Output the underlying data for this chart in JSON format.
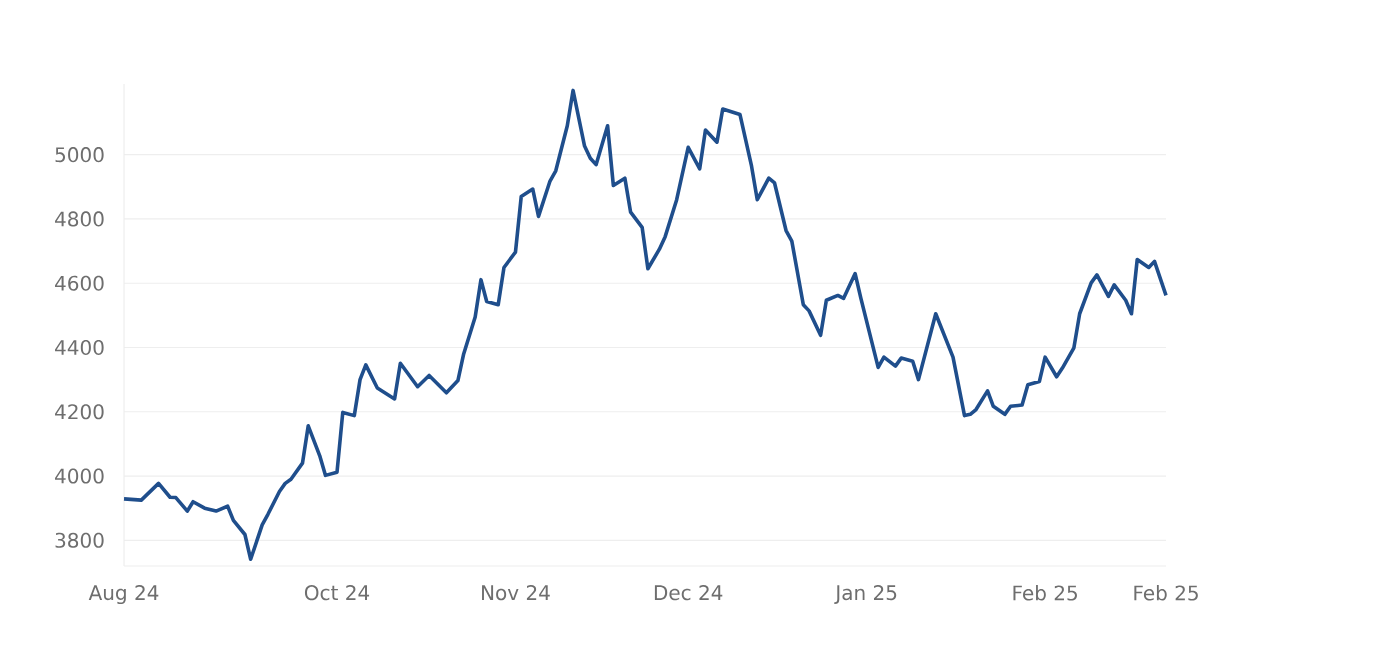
{
  "chart_data": {
    "type": "line",
    "grid": "y",
    "line_style": "solid",
    "xlim": [
      "2024-08-25",
      "2025-02-22"
    ],
    "ylim": [
      3720,
      5220
    ],
    "yticks": [
      3800,
      4000,
      4200,
      4400,
      4600,
      4800,
      5000
    ],
    "xticks": [
      {
        "value": "2024-08-25",
        "label": "Aug 24"
      },
      {
        "value": "2024-10-01",
        "label": "Oct 24"
      },
      {
        "value": "2024-11-01",
        "label": "Nov 24"
      },
      {
        "value": "2024-12-01",
        "label": "Dec 24"
      },
      {
        "value": "2025-01-01",
        "label": "Jan 25"
      },
      {
        "value": "2025-02-01",
        "label": "Feb 25"
      },
      {
        "value": "2025-02-22",
        "label": "Feb 25"
      }
    ],
    "x": [
      "2024-08-25",
      "2024-08-28",
      "2024-08-31",
      "2024-09-02",
      "2024-09-03",
      "2024-09-05",
      "2024-09-06",
      "2024-09-08",
      "2024-09-10",
      "2024-09-12",
      "2024-09-13",
      "2024-09-15",
      "2024-09-16",
      "2024-09-18",
      "2024-09-19",
      "2024-09-21",
      "2024-09-22",
      "2024-09-23",
      "2024-09-25",
      "2024-09-26",
      "2024-09-28",
      "2024-09-29",
      "2024-10-01",
      "2024-10-02",
      "2024-10-04",
      "2024-10-05",
      "2024-10-06",
      "2024-10-08",
      "2024-10-11",
      "2024-10-12",
      "2024-10-15",
      "2024-10-17",
      "2024-10-20",
      "2024-10-22",
      "2024-10-23",
      "2024-10-25",
      "2024-10-26",
      "2024-10-27",
      "2024-10-29",
      "2024-10-30",
      "2024-11-01",
      "2024-11-02",
      "2024-11-04",
      "2024-11-05",
      "2024-11-07",
      "2024-11-08",
      "2024-11-10",
      "2024-11-11",
      "2024-11-13",
      "2024-11-14",
      "2024-11-15",
      "2024-11-17",
      "2024-11-18",
      "2024-11-20",
      "2024-11-21",
      "2024-11-23",
      "2024-11-24",
      "2024-11-26",
      "2024-11-27",
      "2024-11-29",
      "2024-12-01",
      "2024-12-03",
      "2024-12-04",
      "2024-12-06",
      "2024-12-07",
      "2024-12-10",
      "2024-12-12",
      "2024-12-13",
      "2024-12-15",
      "2024-12-16",
      "2024-12-18",
      "2024-12-19",
      "2024-12-21",
      "2024-12-22",
      "2024-12-24",
      "2024-12-25",
      "2024-12-27",
      "2024-12-28",
      "2024-12-30",
      "2024-12-31",
      "2025-01-03",
      "2025-01-04",
      "2025-01-06",
      "2025-01-07",
      "2025-01-09",
      "2025-01-10",
      "2025-01-13",
      "2025-01-16",
      "2025-01-18",
      "2025-01-19",
      "2025-01-20",
      "2025-01-22",
      "2025-01-23",
      "2025-01-25",
      "2025-01-26",
      "2025-01-28",
      "2025-01-29",
      "2025-01-31",
      "2025-02-01",
      "2025-02-03",
      "2025-02-04",
      "2025-02-06",
      "2025-02-07",
      "2025-02-09",
      "2025-02-10",
      "2025-02-12",
      "2025-02-13",
      "2025-02-15",
      "2025-02-16",
      "2025-02-17",
      "2025-02-19",
      "2025-02-20",
      "2025-02-22"
    ],
    "series": [
      {
        "color": "#1f4e8c",
        "values": [
          3929,
          3925,
          3977,
          3934,
          3933,
          3891,
          3920,
          3900,
          3891,
          3906,
          3862,
          3818,
          3741,
          3848,
          3881,
          3952,
          3977,
          3990,
          4040,
          4156,
          4063,
          4002,
          4012,
          4198,
          4188,
          4300,
          4346,
          4274,
          4240,
          4351,
          4278,
          4313,
          4259,
          4297,
          4380,
          4495,
          4611,
          4543,
          4533,
          4649,
          4697,
          4870,
          4893,
          4808,
          4918,
          4950,
          5090,
          5200,
          5027,
          4989,
          4969,
          5090,
          4904,
          4927,
          4821,
          4774,
          4645,
          4706,
          4745,
          4860,
          5023,
          4956,
          5077,
          5039,
          5142,
          5125,
          4965,
          4860,
          4927,
          4912,
          4764,
          4731,
          4533,
          4514,
          4438,
          4547,
          4562,
          4553,
          4630,
          4553,
          4338,
          4370,
          4342,
          4367,
          4357,
          4300,
          4505,
          4370,
          4188,
          4192,
          4207,
          4265,
          4217,
          4192,
          4217,
          4221,
          4284,
          4294,
          4370,
          4309,
          4336,
          4399,
          4505,
          4601,
          4626,
          4559,
          4595,
          4547,
          4505,
          4674,
          4649,
          4668,
          4562
        ]
      }
    ]
  }
}
